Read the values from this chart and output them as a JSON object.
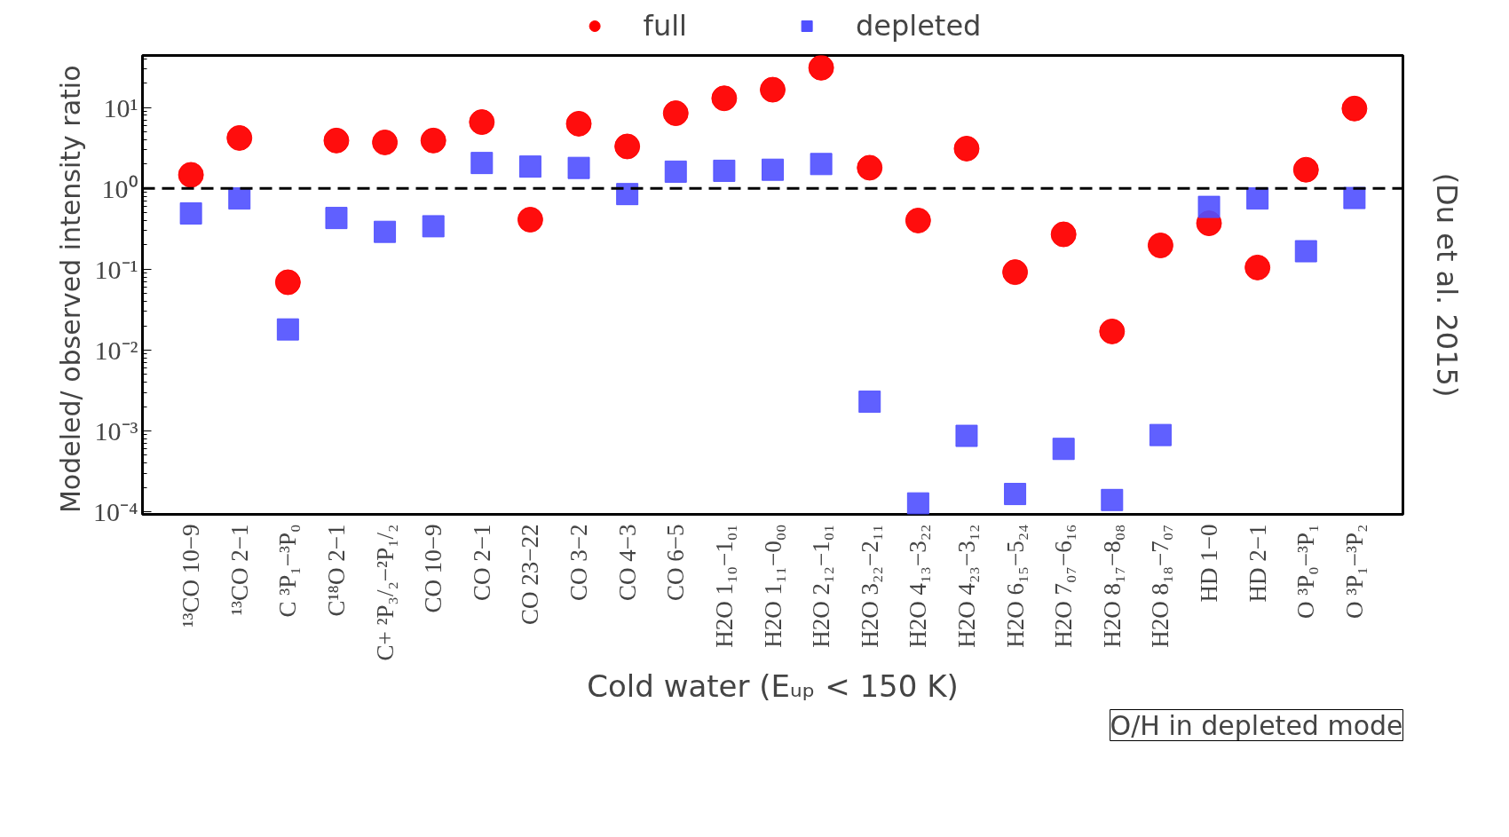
{
  "chart_data": {
    "type": "scatter",
    "categories": [
      "¹³CO 10−9",
      "¹³CO 2−1",
      "C ³P₁−³P₀",
      "C¹⁸O 2−1",
      "C+ ²P₃/₂−²P₁/₂",
      "CO 10−9",
      "CO 2−1",
      "CO 23−22",
      "CO 3−2",
      "CO 4−3",
      "CO 6−5",
      "H2O 1₁₀−1₀₁",
      "H2O 1₁₁−0₀₀",
      "H2O 2₁₂−1₀₁",
      "H2O 3₂₂−2₁₁",
      "H2O 4₁₃−3₂₂",
      "H2O 4₂₃−3₁₂",
      "H2O 6₁₅−5₂₄",
      "H2O 7₀₇−6₁₆",
      "H2O 8₁₇−8₀₈",
      "H2O 8₁₈−7₀₇",
      "HD 1−0",
      "HD 2−1",
      "O ³P₀−³P₁",
      "O ³P₁−³P₂"
    ],
    "ylabel": "Modeled/ observed intensity  ratio",
    "xlabel": "Cold water (Eᵤₚ < 150 K)",
    "log": "y",
    "ylim": [
      9.3e-05,
      44
    ],
    "yticks": [
      {
        "value": 0.0001,
        "label": "10⁻⁴"
      },
      {
        "value": 0.001,
        "label": "10⁻³"
      },
      {
        "value": 0.01,
        "label": "10⁻²"
      },
      {
        "value": 0.1,
        "label": "10⁻¹"
      },
      {
        "value": 1,
        "label": "10⁰"
      },
      {
        "value": 10,
        "label": "10¹"
      }
    ],
    "tick_labels": "x y",
    "grid": false,
    "legend": "top",
    "series": [
      {
        "name": "full",
        "color": "#ff0000",
        "marker": "circle",
        "values": [
          1.47,
          4.2,
          0.069,
          3.9,
          3.7,
          3.9,
          6.6,
          0.41,
          6.3,
          3.3,
          8.5,
          13,
          16.6,
          31,
          1.8,
          0.4,
          3.1,
          0.092,
          0.27,
          0.017,
          0.197,
          0.37,
          0.105,
          1.7,
          9.7
        ]
      },
      {
        "name": "depleted",
        "color": "#4f4fff",
        "marker": "square",
        "values": [
          0.49,
          0.75,
          0.018,
          0.43,
          0.29,
          0.34,
          2.06,
          1.86,
          1.79,
          0.85,
          1.61,
          1.65,
          1.7,
          2.0,
          0.0023,
          0.000127,
          0.00087,
          0.000166,
          0.0006,
          0.00014,
          0.00089,
          0.59,
          0.75,
          0.167,
          0.76
        ]
      }
    ],
    "ref_lines": [
      {
        "axis": "y",
        "value": 1,
        "label": null,
        "color": "#000000",
        "line_style": "dashed"
      }
    ],
    "annotations": [
      "(Du et al. 2015)",
      "O/H in depleted mode"
    ]
  }
}
